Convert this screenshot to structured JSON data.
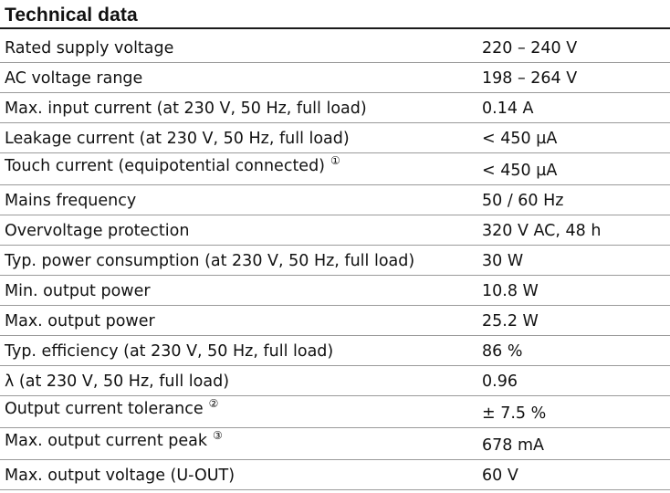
{
  "title": "Technical data",
  "rows": [
    {
      "param": "Rated supply voltage",
      "note": "",
      "value": "220 – 240 V"
    },
    {
      "param": "AC voltage range",
      "note": "",
      "value": "198 – 264 V"
    },
    {
      "param": "Max. input current (at 230 V, 50 Hz, full load)",
      "note": "",
      "value": "0.14 A"
    },
    {
      "param": "Leakage current (at 230 V, 50 Hz, full load)",
      "note": "",
      "value": "< 450 µA"
    },
    {
      "param": "Touch current (equipotential connected)",
      "note": "①",
      "value": "< 450 µA"
    },
    {
      "param": "Mains frequency",
      "note": "",
      "value": "50 / 60 Hz"
    },
    {
      "param": "Overvoltage protection",
      "note": "",
      "value": "320 V AC, 48 h"
    },
    {
      "param": "Typ. power consumption (at 230 V, 50 Hz, full load)",
      "note": "",
      "value": "30 W"
    },
    {
      "param": "Min. output power",
      "note": "",
      "value": "10.8 W"
    },
    {
      "param": "Max. output power",
      "note": "",
      "value": "25.2 W"
    },
    {
      "param": "Typ. efficiency (at 230 V, 50 Hz, full load)",
      "note": "",
      "value": "86 %"
    },
    {
      "param": "λ (at 230 V, 50 Hz, full load)",
      "note": "",
      "value": "0.96"
    },
    {
      "param": "Output current tolerance",
      "note": "②",
      "value": "± 7.5 %"
    },
    {
      "param": "Max. output current peak",
      "note": "③",
      "value": "678 mA"
    },
    {
      "param": "Max. output voltage (U-OUT)",
      "note": "",
      "value": "60 V"
    }
  ]
}
